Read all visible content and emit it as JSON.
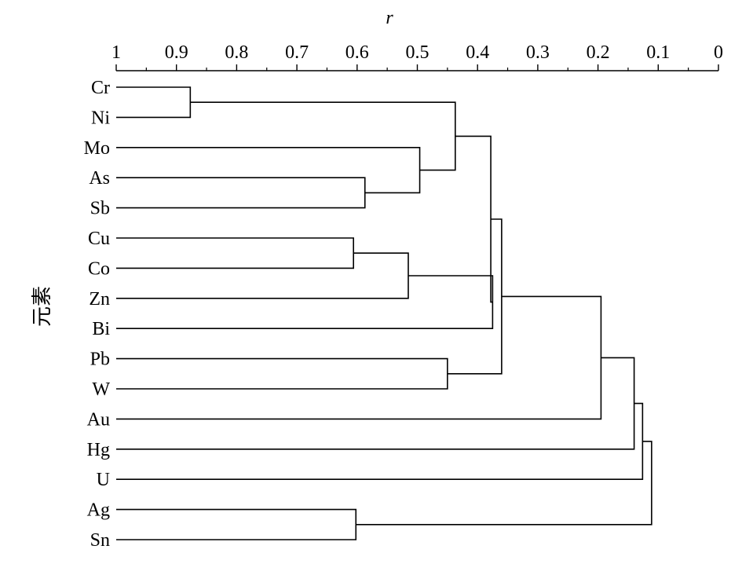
{
  "axis": {
    "title": "r",
    "ticks": [
      "1",
      "0.9",
      "0.8",
      "0.7",
      "0.6",
      "0.5",
      "0.4",
      "0.3",
      "0.2",
      "0.1",
      "0"
    ],
    "range": [
      1,
      0
    ]
  },
  "side_title": "元素",
  "colors": {
    "line": "#000000",
    "background": "#ffffff"
  },
  "leaves": [
    "Cr",
    "Ni",
    "Mo",
    "As",
    "Sb",
    "Cu",
    "Co",
    "Zn",
    "Bi",
    "Pb",
    "W",
    "Au",
    "Hg",
    "U",
    "Ag",
    "Sn"
  ],
  "merges": [
    {
      "id": "c1",
      "a": "Cr",
      "b": "Ni",
      "r": 0.877
    },
    {
      "id": "c2",
      "a": "As",
      "b": "Sb",
      "r": 0.587
    },
    {
      "id": "c3",
      "a": "Mo",
      "b": "c2",
      "r": 0.496
    },
    {
      "id": "c4",
      "a": "c1",
      "b": "c3",
      "r": 0.437
    },
    {
      "id": "c5",
      "a": "Cu",
      "b": "Co",
      "r": 0.606
    },
    {
      "id": "c6",
      "a": "c5",
      "b": "Zn",
      "r": 0.515
    },
    {
      "id": "c7",
      "a": "c6",
      "b": "Bi",
      "r": 0.375
    },
    {
      "id": "c8",
      "a": "c4",
      "b": "c7",
      "r": 0.378
    },
    {
      "id": "c9",
      "a": "Pb",
      "b": "W",
      "r": 0.45
    },
    {
      "id": "c10",
      "a": "c8",
      "b": "c9",
      "r": 0.36
    },
    {
      "id": "c11",
      "a": "c10",
      "b": "Au",
      "r": 0.195
    },
    {
      "id": "c12",
      "a": "c11",
      "b": "Hg",
      "r": 0.14
    },
    {
      "id": "c13",
      "a": "c12",
      "b": "U",
      "r": 0.126
    },
    {
      "id": "c14",
      "a": "Ag",
      "b": "Sn",
      "r": 0.602
    },
    {
      "id": "c15",
      "a": "c13",
      "b": "c14",
      "r": 0.111
    }
  ]
}
